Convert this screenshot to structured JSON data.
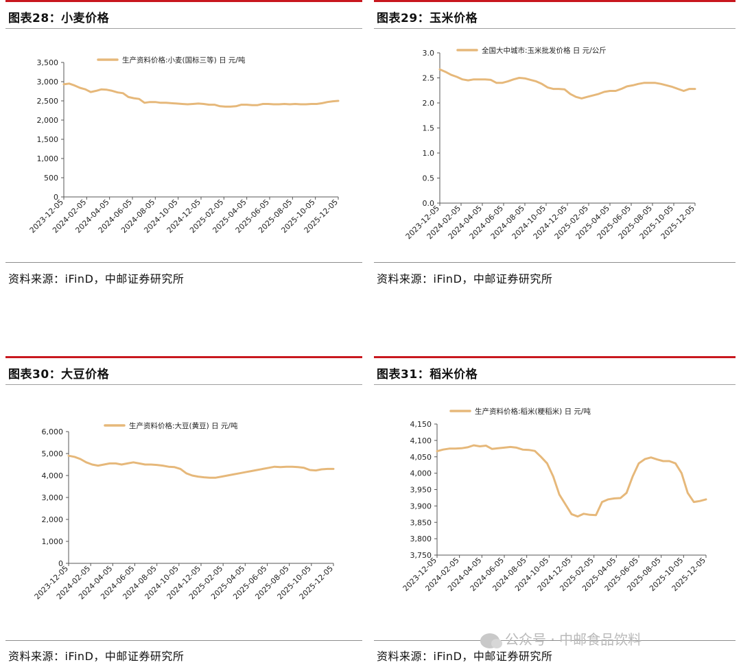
{
  "panels": [
    {
      "title": "图表28：小麦价格",
      "source": "资料来源：iFinD，中邮证券研究所",
      "chart_data": {
        "type": "line",
        "title": "",
        "xlabel": "",
        "ylabel": "",
        "ylim": [
          0,
          3500
        ],
        "yticks": [
          0,
          500,
          1000,
          1500,
          2000,
          2500,
          3000,
          3500
        ],
        "ytick_labels": [
          "0",
          "500",
          "1,000",
          "1,500",
          "2,000",
          "2,500",
          "3,000",
          "3,500"
        ],
        "xtick_labels": [
          "2023-12-05",
          "2024-02-05",
          "2024-04-05",
          "2024-06-05",
          "2024-08-05",
          "2024-10-05",
          "2024-12-05",
          "2025-02-05",
          "2025-04-05",
          "2025-06-05",
          "2025-08-05",
          "2025-10-05",
          "2025-12-05"
        ],
        "legend_position": "top-center",
        "grid": false,
        "color": "#e6b87a",
        "series": [
          {
            "name": "生产资料价格:小麦(国标三等) 日 元/吨",
            "values": [
              2930,
              2950,
              2900,
              2840,
              2800,
              2730,
              2760,
              2800,
              2790,
              2760,
              2720,
              2700,
              2600,
              2570,
              2550,
              2450,
              2470,
              2470,
              2450,
              2450,
              2440,
              2430,
              2420,
              2410,
              2420,
              2430,
              2420,
              2400,
              2400,
              2360,
              2350,
              2350,
              2360,
              2400,
              2400,
              2390,
              2390,
              2420,
              2420,
              2410,
              2410,
              2420,
              2410,
              2420,
              2410,
              2410,
              2420,
              2420,
              2440,
              2470,
              2490,
              2500
            ]
          }
        ]
      }
    },
    {
      "title": "图表29：玉米价格",
      "source": "资料来源：iFinD，中邮证券研究所",
      "chart_data": {
        "type": "line",
        "title": "",
        "xlabel": "",
        "ylabel": "",
        "ylim": [
          0,
          3.0
        ],
        "yticks": [
          0,
          0.5,
          1.0,
          1.5,
          2.0,
          2.5,
          3.0
        ],
        "ytick_labels": [
          "0.0",
          "0.5",
          "1.0",
          "1.5",
          "2.0",
          "2.5",
          "3.0"
        ],
        "xtick_labels": [
          "2023-12-05",
          "2024-02-05",
          "2024-04-05",
          "2024-06-05",
          "2024-08-05",
          "2024-10-05",
          "2024-12-05",
          "2025-02-05",
          "2025-04-05",
          "2025-06-05",
          "2025-08-05",
          "2025-10-05",
          "2025-12-05"
        ],
        "legend_position": "top-center",
        "grid": false,
        "color": "#e6b87a",
        "series": [
          {
            "name": "全国大中城市:玉米批发价格 日 元/公斤",
            "values": [
              2.67,
              2.62,
              2.56,
              2.52,
              2.47,
              2.45,
              2.47,
              2.47,
              2.47,
              2.46,
              2.4,
              2.4,
              2.43,
              2.47,
              2.5,
              2.49,
              2.46,
              2.43,
              2.38,
              2.31,
              2.28,
              2.28,
              2.27,
              2.18,
              2.12,
              2.09,
              2.12,
              2.15,
              2.18,
              2.22,
              2.24,
              2.24,
              2.28,
              2.33,
              2.35,
              2.38,
              2.4,
              2.4,
              2.4,
              2.38,
              2.35,
              2.32,
              2.28,
              2.24,
              2.28,
              2.28
            ]
          }
        ]
      }
    },
    {
      "title": "图表30：大豆价格",
      "source": "资料来源：iFinD，中邮证券研究所",
      "chart_data": {
        "type": "line",
        "title": "",
        "xlabel": "",
        "ylabel": "",
        "ylim": [
          0,
          6000
        ],
        "yticks": [
          0,
          1000,
          2000,
          3000,
          4000,
          5000,
          6000
        ],
        "ytick_labels": [
          "0",
          "1,000",
          "2,000",
          "3,000",
          "4,000",
          "5,000",
          "6,000"
        ],
        "xtick_labels": [
          "2023-12-05",
          "2024-02-05",
          "2024-04-05",
          "2024-06-05",
          "2024-08-05",
          "2024-10-05",
          "2024-12-05",
          "2025-02-05",
          "2025-04-05",
          "2025-06-05",
          "2025-08-05",
          "2025-10-05",
          "2025-12-05"
        ],
        "legend_position": "top-center",
        "grid": false,
        "color": "#e6b87a",
        "series": [
          {
            "name": "生产资料价格:大豆(黄豆) 日 元/吨",
            "values": [
              4900,
              4850,
              4750,
              4600,
              4500,
              4450,
              4500,
              4550,
              4550,
              4500,
              4550,
              4600,
              4550,
              4500,
              4500,
              4480,
              4450,
              4400,
              4380,
              4300,
              4100,
              4000,
              3950,
              3920,
              3900,
              3900,
              3950,
              4000,
              4050,
              4100,
              4150,
              4200,
              4250,
              4300,
              4350,
              4400,
              4380,
              4400,
              4400,
              4380,
              4350,
              4250,
              4230,
              4280,
              4300,
              4300
            ]
          }
        ]
      }
    },
    {
      "title": "图表31：稻米价格",
      "source": "资料来源：iFinD，中邮证券研究所",
      "chart_data": {
        "type": "line",
        "title": "",
        "xlabel": "",
        "ylabel": "",
        "ylim": [
          3750,
          4150
        ],
        "yticks": [
          3750,
          3800,
          3850,
          3900,
          3950,
          4000,
          4050,
          4100,
          4150
        ],
        "ytick_labels": [
          "3,750",
          "3,800",
          "3,850",
          "3,900",
          "3,950",
          "4,000",
          "4,050",
          "4,100",
          "4,150"
        ],
        "xtick_labels": [
          "2023-12-05",
          "2024-02-05",
          "2024-04-05",
          "2024-06-05",
          "2024-08-05",
          "2024-10-05",
          "2024-12-05",
          "2025-02-05",
          "2025-04-05",
          "2025-06-05",
          "2025-08-05",
          "2025-10-05",
          "2025-12-05"
        ],
        "legend_position": "top-center",
        "grid": false,
        "color": "#e6b87a",
        "series": [
          {
            "name": "生产资料价格:稻米(粳稻米) 日 元/吨",
            "values": [
              4067,
              4072,
              4075,
              4075,
              4076,
              4079,
              4085,
              4082,
              4084,
              4074,
              4076,
              4078,
              4080,
              4078,
              4072,
              4071,
              4068,
              4050,
              4030,
              3990,
              3935,
              3905,
              3875,
              3868,
              3876,
              3873,
              3872,
              3912,
              3920,
              3923,
              3924,
              3940,
              3990,
              4030,
              4043,
              4048,
              4042,
              4037,
              4037,
              4030,
              4000,
              3940,
              3912,
              3915,
              3920
            ]
          }
        ]
      }
    }
  ],
  "watermark": "公众号 · 中邮食品饮料"
}
